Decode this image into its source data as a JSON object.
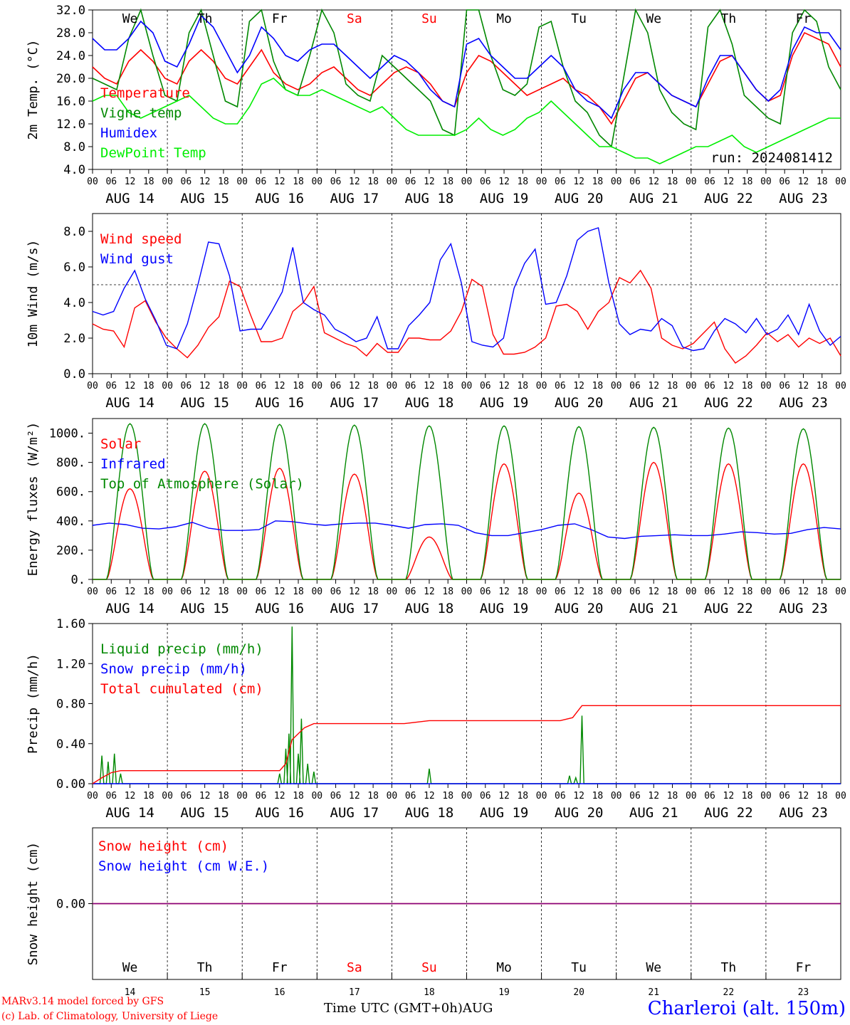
{
  "chart_data": [
    {
      "type": "line",
      "ylabel": "2m Temp. (°C)",
      "ylim": [
        4,
        32
      ],
      "yticks": [
        "4.0",
        "8.0",
        "12.0",
        "16.0",
        "20.0",
        "24.0",
        "28.0",
        "32.0"
      ],
      "weekday_labels": [
        "We",
        "Th",
        "Fr",
        "Sa",
        "Su",
        "Mo",
        "Tu",
        "We",
        "Th",
        "Fr"
      ],
      "weekend_days": [
        "Sa",
        "Su"
      ],
      "run_label": "run: 2024081412",
      "series": [
        {
          "name": "Temperature",
          "color": "#ff0000",
          "values": [
            22,
            20,
            19,
            23,
            25,
            23,
            20,
            19,
            23,
            25,
            23,
            20,
            19,
            22,
            25,
            21,
            19,
            18,
            19,
            21,
            22,
            20,
            18,
            17,
            19,
            21,
            22,
            21,
            19,
            16,
            15,
            21,
            24,
            23,
            21,
            19,
            17,
            18,
            19,
            20,
            18,
            17,
            15,
            12,
            16,
            20,
            21,
            19,
            17,
            16,
            15,
            19,
            23,
            24,
            21,
            18,
            16,
            17,
            24,
            28,
            27,
            26,
            22
          ]
        },
        {
          "name": "Vigne temp",
          "color": "#008800",
          "values": [
            20,
            19,
            18,
            27,
            32,
            24,
            17,
            16,
            28,
            32,
            24,
            16,
            15,
            30,
            32,
            23,
            18,
            17,
            24,
            32,
            28,
            19,
            17,
            16,
            24,
            22,
            20,
            18,
            16,
            11,
            10,
            32,
            32,
            24,
            18,
            17,
            19,
            29,
            30,
            22,
            16,
            14,
            10,
            8,
            20,
            32,
            28,
            18,
            14,
            12,
            11,
            29,
            32,
            26,
            17,
            15,
            13,
            12,
            28,
            32,
            30,
            22,
            18
          ]
        },
        {
          "name": "Humidex",
          "color": "#0000ff",
          "values": [
            27,
            25,
            25,
            27,
            30,
            28,
            23,
            22,
            26,
            31,
            29,
            25,
            21,
            24,
            29,
            27,
            24,
            23,
            25,
            26,
            26,
            24,
            22,
            20,
            22,
            24,
            23,
            21,
            18,
            16,
            15,
            26,
            27,
            24,
            22,
            20,
            20,
            22,
            24,
            22,
            18,
            16,
            15,
            13,
            18,
            21,
            21,
            19,
            17,
            16,
            15,
            20,
            24,
            24,
            21,
            18,
            16,
            18,
            25,
            29,
            28,
            28,
            25
          ]
        },
        {
          "name": "DewPoint Temp",
          "color": "#00ee00",
          "values": [
            16,
            17,
            17,
            14,
            13,
            14,
            15,
            16,
            17,
            15,
            13,
            12,
            12,
            15,
            19,
            20,
            18,
            17,
            17,
            18,
            17,
            16,
            15,
            14,
            15,
            13,
            11,
            10,
            10,
            10,
            10,
            11,
            13,
            11,
            10,
            11,
            13,
            14,
            16,
            14,
            12,
            10,
            8,
            8,
            7,
            6,
            6,
            5,
            6,
            7,
            8,
            8,
            9,
            10,
            8,
            7,
            8,
            9,
            10,
            11,
            12,
            13,
            13
          ]
        }
      ]
    },
    {
      "type": "line",
      "ylabel": "10m Wind (m/s)",
      "ylim": [
        0,
        9
      ],
      "yticks": [
        "0.0",
        "2.0",
        "4.0",
        "6.0",
        "8.0"
      ],
      "reference_line": 5,
      "series": [
        {
          "name": "Wind speed",
          "color": "#ff0000",
          "values": [
            2.8,
            2.5,
            2.4,
            1.5,
            3.7,
            4.1,
            2.9,
            2.0,
            1.4,
            0.9,
            1.6,
            2.6,
            3.2,
            5.2,
            4.9,
            3.3,
            1.8,
            1.8,
            2.0,
            3.5,
            4.0,
            4.9,
            2.3,
            2.0,
            1.7,
            1.5,
            1.0,
            1.7,
            1.2,
            1.2,
            2.0,
            2.0,
            1.9,
            1.9,
            2.4,
            3.5,
            5.3,
            4.9,
            2.2,
            1.1,
            1.1,
            1.2,
            1.5,
            2.0,
            3.8,
            3.9,
            3.5,
            2.5,
            3.5,
            4.0,
            5.4,
            5.1,
            5.8,
            4.8,
            2.0,
            1.6,
            1.4,
            1.7,
            2.3,
            2.9,
            1.4,
            0.6,
            1.0,
            1.6,
            2.3,
            1.8,
            2.2,
            1.5,
            2.0,
            1.7,
            2.0,
            1.0
          ]
        },
        {
          "name": "Wind gust",
          "color": "#0000ff",
          "values": [
            3.5,
            3.3,
            3.5,
            4.8,
            5.8,
            4.2,
            3.0,
            1.6,
            1.4,
            2.8,
            5.0,
            7.4,
            7.3,
            5.5,
            2.4,
            2.5,
            2.5,
            3.5,
            4.6,
            7.1,
            4.0,
            3.6,
            3.3,
            2.5,
            2.2,
            1.8,
            2.0,
            3.2,
            1.4,
            1.4,
            2.7,
            3.3,
            4.0,
            6.4,
            7.3,
            5.1,
            1.8,
            1.6,
            1.5,
            2.0,
            4.8,
            6.2,
            7.0,
            3.9,
            4.0,
            5.5,
            7.5,
            8.0,
            8.2,
            5.1,
            2.8,
            2.2,
            2.5,
            2.4,
            3.1,
            2.7,
            1.5,
            1.3,
            1.4,
            2.4,
            3.1,
            2.8,
            2.3,
            3.1,
            2.2,
            2.5,
            3.3,
            2.2,
            3.9,
            2.4,
            1.6,
            2.1
          ]
        }
      ]
    },
    {
      "type": "line",
      "ylabel": "Energy fluxes (W/m²)",
      "ylim": [
        0,
        1100
      ],
      "yticks": [
        "0.",
        "200.",
        "400.",
        "600.",
        "800.",
        "1000."
      ],
      "series": [
        {
          "name": "Solar",
          "color": "#ff0000",
          "peaks": [
            620,
            740,
            760,
            720,
            290,
            790,
            590,
            800,
            790,
            790
          ]
        },
        {
          "name": "Infrared",
          "color": "#0000ff",
          "values": [
            370,
            385,
            375,
            350,
            345,
            360,
            390,
            350,
            335,
            335,
            340,
            400,
            395,
            380,
            370,
            380,
            385,
            385,
            370,
            350,
            375,
            380,
            370,
            320,
            300,
            300,
            320,
            340,
            370,
            380,
            340,
            290,
            280,
            295,
            300,
            305,
            300,
            300,
            310,
            325,
            320,
            310,
            315,
            340,
            355,
            345
          ]
        },
        {
          "name": "Top of Atmosphere (Solar)",
          "color": "#008800",
          "peaks": [
            1065,
            1065,
            1060,
            1055,
            1050,
            1050,
            1045,
            1040,
            1035,
            1030
          ]
        }
      ]
    },
    {
      "type": "line",
      "ylabel": "Precip (mm/h)",
      "ylim": [
        0,
        1.6
      ],
      "yticks": [
        "0.00",
        "0.40",
        "0.80",
        "1.20",
        "1.60"
      ],
      "series": [
        {
          "name": "Liquid precip (mm/h)",
          "color": "#008800",
          "spikes": [
            [
              3,
              0.28
            ],
            [
              5,
              0.22
            ],
            [
              7,
              0.3
            ],
            [
              9,
              0.1
            ],
            [
              60,
              0.1
            ],
            [
              62,
              0.35
            ],
            [
              63,
              0.5
            ],
            [
              64,
              1.57
            ],
            [
              66,
              0.3
            ],
            [
              67,
              0.65
            ],
            [
              69,
              0.2
            ],
            [
              71,
              0.12
            ],
            [
              108,
              0.15
            ],
            [
              153,
              0.08
            ],
            [
              155,
              0.06
            ],
            [
              157,
              0.68
            ]
          ]
        },
        {
          "name": "Snow precip (mm/h)",
          "color": "#0000ff",
          "spikes": []
        },
        {
          "name": "Total cumulated (cm)",
          "color": "#ff0000",
          "values": [
            [
              0,
              0.0
            ],
            [
              3,
              0.06
            ],
            [
              6,
              0.11
            ],
            [
              9,
              0.13
            ],
            [
              60,
              0.13
            ],
            [
              62,
              0.2
            ],
            [
              64,
              0.44
            ],
            [
              66,
              0.5
            ],
            [
              68,
              0.56
            ],
            [
              71,
              0.6
            ],
            [
              75,
              0.6
            ],
            [
              100,
              0.6
            ],
            [
              108,
              0.63
            ],
            [
              120,
              0.63
            ],
            [
              150,
              0.63
            ],
            [
              154,
              0.66
            ],
            [
              157,
              0.78
            ],
            [
              240,
              0.78
            ]
          ]
        }
      ]
    },
    {
      "type": "line",
      "ylabel": "Snow height (cm)",
      "yticks": [
        "0.00"
      ],
      "series": [
        {
          "name": "Snow height (cm)",
          "color": "#ff0000",
          "values": [
            0,
            0
          ]
        },
        {
          "name": "Snow height (cm W.E.)",
          "color": "#0000ff",
          "values": [
            0,
            0
          ]
        }
      ]
    }
  ],
  "x_axis": {
    "hour_labels": [
      "00",
      "06",
      "12",
      "18"
    ],
    "end_label": "00",
    "date_labels": [
      "AUG 14",
      "AUG 15",
      "AUG 16",
      "AUG 17",
      "AUG 18",
      "AUG 19",
      "AUG 20",
      "AUG 21",
      "AUG 22",
      "AUG 23"
    ],
    "bottom_day_numbers": [
      "14",
      "15",
      "16",
      "17",
      "18",
      "19",
      "20",
      "21",
      "22",
      "23"
    ],
    "title": "Time UTC (GMT+0h)AUG"
  },
  "footer": {
    "credit_line1": "MARv3.14 model forced by GFS",
    "credit_line2": "(c) Lab. of Climatology, University of Liege",
    "station": "Charleroi (alt. 150m)"
  }
}
